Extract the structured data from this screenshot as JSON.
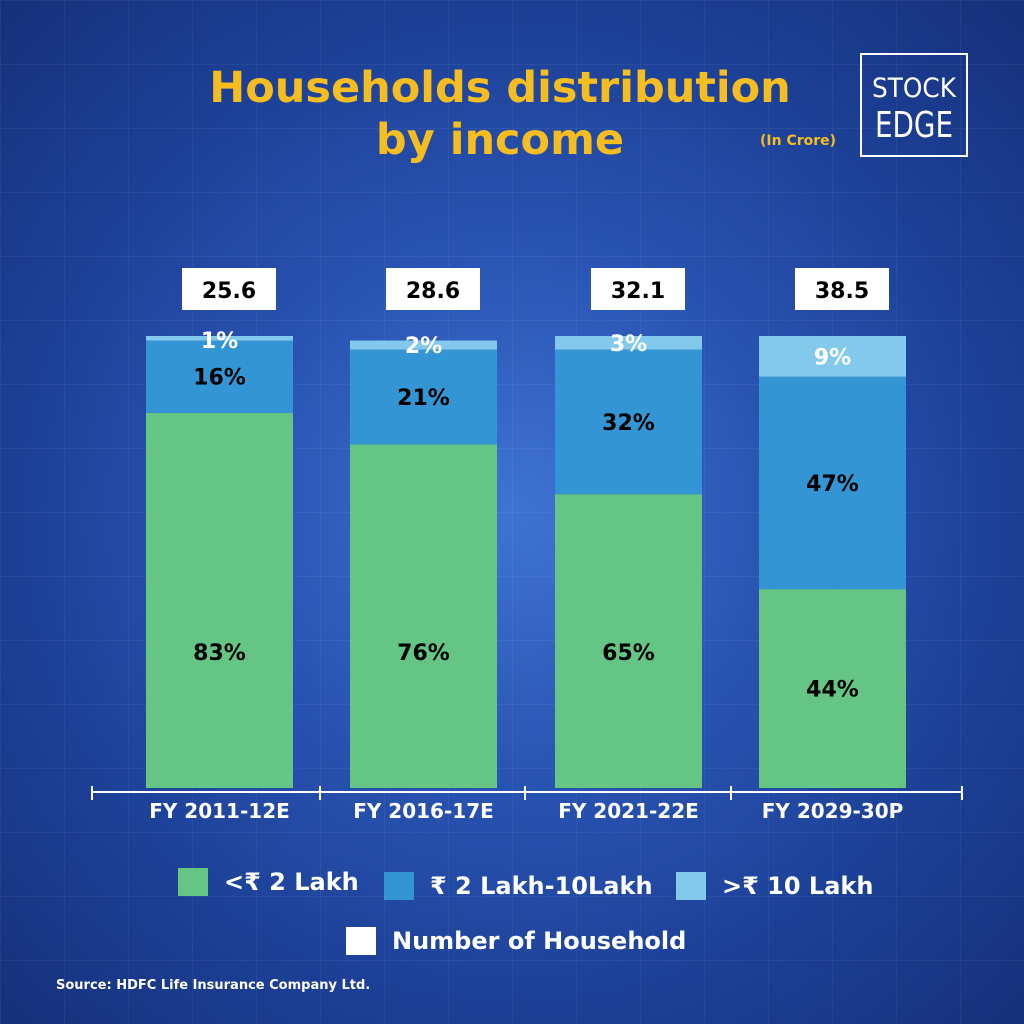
{
  "header": {
    "title_line1": "Households distribution",
    "title_line2": "by income",
    "unit": "(In Crore)",
    "logo_text_top": "STOCK",
    "logo_text_bottom": "EDGE"
  },
  "colors": {
    "title": "#f5bd1f",
    "low_income": "#64c584",
    "mid_income": "#3395d4",
    "high_income": "#82c9ec",
    "household_box": "#ffffff"
  },
  "chart_data": {
    "type": "bar",
    "stacked": true,
    "categories": [
      "FY 2011-12E",
      "FY 2016-17E",
      "FY 2021-22E",
      "FY 2029-30P"
    ],
    "series": [
      {
        "name": "<₹ 2 Lakh",
        "values": [
          83,
          76,
          65,
          44
        ],
        "labels": [
          "83%",
          "76%",
          "65%",
          "44%"
        ]
      },
      {
        "name": "₹ 2 Lakh-10Lakh",
        "values": [
          16,
          21,
          32,
          47
        ],
        "labels": [
          "16%",
          "21%",
          "32%",
          "47%"
        ]
      },
      {
        "name": ">₹ 10 Lakh",
        "values": [
          1,
          2,
          3,
          9
        ],
        "labels": [
          "1%",
          "2%",
          "3%",
          "9%"
        ]
      }
    ],
    "households": {
      "name": "Number of Household",
      "values": [
        25.6,
        28.6,
        32.1,
        38.5
      ],
      "labels": [
        "25.6",
        "28.6",
        "32.1",
        "38.5"
      ]
    },
    "ylim": [
      0,
      100
    ]
  },
  "legend": {
    "low": "<₹ 2 Lakh",
    "mid": "₹ 2 Lakh-10Lakh",
    "high": ">₹ 10 Lakh",
    "households": "Number of Household"
  },
  "footer": {
    "source": "Source: HDFC Life Insurance Company Ltd."
  }
}
